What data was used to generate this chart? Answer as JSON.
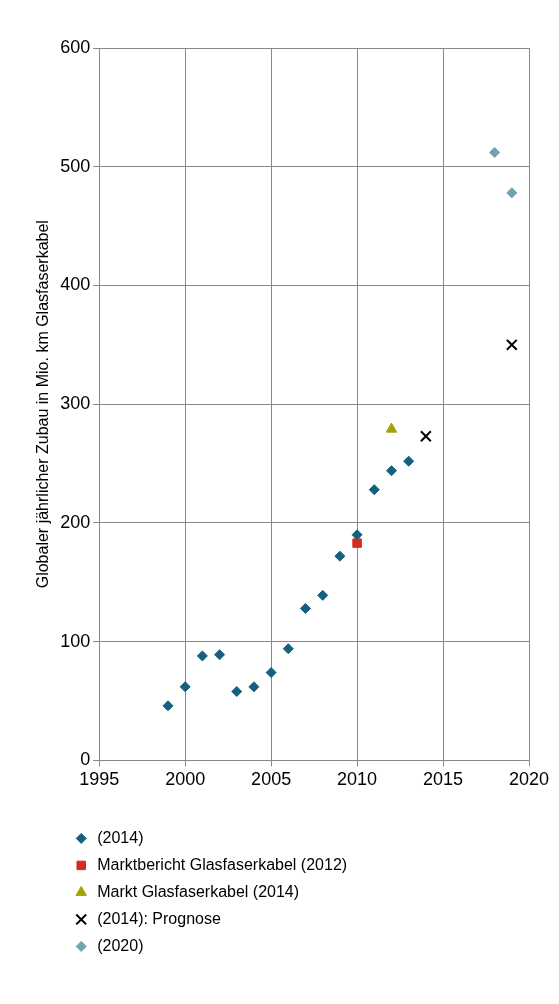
{
  "chart_data": {
    "type": "scatter",
    "ylabel": "Globaler jährlicher Zubau in Mio. km Glasfaserkabel",
    "xlim": [
      1995,
      2020
    ],
    "xticks": [
      1995,
      2000,
      2005,
      2010,
      2015,
      2020
    ],
    "ylim": [
      0,
      600
    ],
    "yticks": [
      0,
      100,
      200,
      300,
      400,
      500,
      600
    ],
    "grid": true,
    "legend": "bottom",
    "series": [
      {
        "name": "(2014)",
        "color": "#17607d",
        "marker": "diamond",
        "x": [
          1999,
          2000,
          2001,
          2002,
          2003,
          2004,
          2005,
          2006,
          2007,
          2008,
          2009,
          2010,
          2011,
          2012,
          2013
        ],
        "values": [
          46,
          62,
          88,
          89,
          58,
          62,
          74,
          94,
          128,
          139,
          172,
          190,
          228,
          244,
          252
        ]
      },
      {
        "name": "Marktbericht Glasfaserkabel (2012)",
        "color": "#d52b1e",
        "marker": "square",
        "x": [
          2010
        ],
        "values": [
          183
        ]
      },
      {
        "name": "Markt Glasfaserkabel (2014)",
        "color": "#a5a100",
        "marker": "triangle",
        "x": [
          2012
        ],
        "values": [
          279
        ]
      },
      {
        "name": "(2014): Prognose",
        "color": "#000000",
        "marker": "cross",
        "x": [
          2014,
          2019
        ],
        "values": [
          273,
          350
        ]
      },
      {
        "name": "(2020)",
        "color": "#6fa3b4",
        "marker": "diamond",
        "x": [
          2018,
          2019
        ],
        "values": [
          512,
          478
        ]
      }
    ]
  }
}
